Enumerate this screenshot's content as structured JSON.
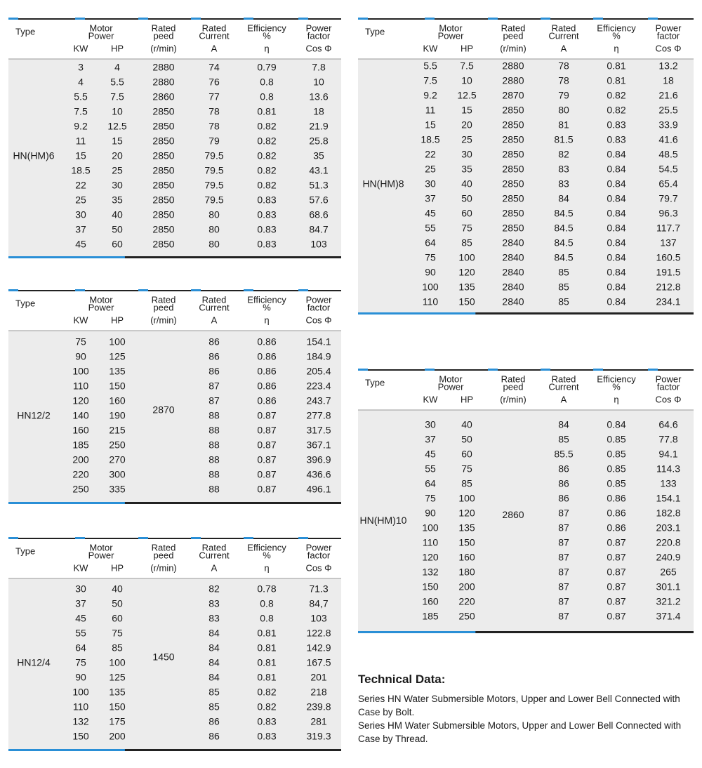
{
  "columns": {
    "type": "Type",
    "motor_power": [
      "Motor",
      "Power"
    ],
    "kw": "KW",
    "hp": "HP",
    "speed": [
      "Rated",
      "peed",
      "(r/min)"
    ],
    "current": [
      "Rated",
      "Current",
      "A"
    ],
    "efficiency": [
      "Efficiency",
      "%",
      "η"
    ],
    "power_factor": [
      "Power",
      "factor",
      "Cos Φ"
    ]
  },
  "tables": [
    {
      "type": "HN(HM)6",
      "rows": [
        [
          "3",
          "4",
          "2880",
          "74",
          "0.79",
          "7.8"
        ],
        [
          "4",
          "5.5",
          "2880",
          "76",
          "0.8",
          "10"
        ],
        [
          "5.5",
          "7.5",
          "2860",
          "77",
          "0.8",
          "13.6"
        ],
        [
          "7.5",
          "10",
          "2850",
          "78",
          "0.81",
          "18"
        ],
        [
          "9.2",
          "12.5",
          "2850",
          "78",
          "0.82",
          "21.9"
        ],
        [
          "11",
          "15",
          "2850",
          "79",
          "0.82",
          "25.8"
        ],
        [
          "15",
          "20",
          "2850",
          "79.5",
          "0.82",
          "35"
        ],
        [
          "18.5",
          "25",
          "2850",
          "79.5",
          "0.82",
          "43.1"
        ],
        [
          "22",
          "30",
          "2850",
          "79.5",
          "0.82",
          "51.3"
        ],
        [
          "25",
          "35",
          "2850",
          "79.5",
          "0.83",
          "57.6"
        ],
        [
          "30",
          "40",
          "2850",
          "80",
          "0.83",
          "68.6"
        ],
        [
          "37",
          "50",
          "2850",
          "80",
          "0.83",
          "84.7"
        ],
        [
          "45",
          "60",
          "2850",
          "80",
          "0.83",
          "103"
        ]
      ]
    },
    {
      "type": "HN(HM)8",
      "rows": [
        [
          "5.5",
          "7.5",
          "2880",
          "78",
          "0.81",
          "13.2"
        ],
        [
          "7.5",
          "10",
          "2880",
          "78",
          "0.81",
          "18"
        ],
        [
          "9.2",
          "12.5",
          "2870",
          "79",
          "0.82",
          "21.6"
        ],
        [
          "11",
          "15",
          "2850",
          "80",
          "0.82",
          "25.5"
        ],
        [
          "15",
          "20",
          "2850",
          "81",
          "0.83",
          "33.9"
        ],
        [
          "18.5",
          "25",
          "2850",
          "81.5",
          "0.83",
          "41.6"
        ],
        [
          "22",
          "30",
          "2850",
          "82",
          "0.84",
          "48.5"
        ],
        [
          "25",
          "35",
          "2850",
          "83",
          "0.84",
          "54.5"
        ],
        [
          "30",
          "40",
          "2850",
          "83",
          "0.84",
          "65.4"
        ],
        [
          "37",
          "50",
          "2850",
          "84",
          "0.84",
          "79.7"
        ],
        [
          "45",
          "60",
          "2850",
          "84.5",
          "0.84",
          "96.3"
        ],
        [
          "55",
          "75",
          "2850",
          "84.5",
          "0.84",
          "117.7"
        ],
        [
          "64",
          "85",
          "2840",
          "84.5",
          "0.84",
          "137"
        ],
        [
          "75",
          "100",
          "2840",
          "84.5",
          "0.84",
          "160.5"
        ],
        [
          "90",
          "120",
          "2840",
          "85",
          "0.84",
          "191.5"
        ],
        [
          "100",
          "135",
          "2840",
          "85",
          "0.84",
          "212.8"
        ],
        [
          "110",
          "150",
          "2840",
          "85",
          "0.84",
          "234.1"
        ]
      ]
    },
    {
      "type": "HN12/2",
      "speed": "2870",
      "rows": [
        [
          "75",
          "100",
          "86",
          "0.86",
          "154.1"
        ],
        [
          "90",
          "125",
          "86",
          "0.86",
          "184.9"
        ],
        [
          "100",
          "135",
          "86",
          "0.86",
          "205.4"
        ],
        [
          "110",
          "150",
          "87",
          "0.86",
          "223.4"
        ],
        [
          "120",
          "160",
          "87",
          "0.86",
          "243.7"
        ],
        [
          "140",
          "190",
          "88",
          "0.87",
          "277.8"
        ],
        [
          "160",
          "215",
          "88",
          "0.87",
          "317.5"
        ],
        [
          "185",
          "250",
          "88",
          "0.87",
          "367.1"
        ],
        [
          "200",
          "270",
          "88",
          "0.87",
          "396.9"
        ],
        [
          "220",
          "300",
          "88",
          "0.87",
          "436.6"
        ],
        [
          "250",
          "335",
          "88",
          "0.87",
          "496.1"
        ]
      ]
    },
    {
      "type": "HN(HM)10",
      "speed": "2860",
      "rows": [
        [
          "30",
          "40",
          "84",
          "0.84",
          "64.6"
        ],
        [
          "37",
          "50",
          "85",
          "0.85",
          "77.8"
        ],
        [
          "45",
          "60",
          "85.5",
          "0.85",
          "94.1"
        ],
        [
          "55",
          "75",
          "86",
          "0.85",
          "114.3"
        ],
        [
          "64",
          "85",
          "86",
          "0.85",
          "133"
        ],
        [
          "75",
          "100",
          "86",
          "0.86",
          "154.1"
        ],
        [
          "90",
          "120",
          "87",
          "0.86",
          "182.8"
        ],
        [
          "100",
          "135",
          "87",
          "0.86",
          "203.1"
        ],
        [
          "110",
          "150",
          "87",
          "0.87",
          "220.8"
        ],
        [
          "120",
          "160",
          "87",
          "0.87",
          "240.9"
        ],
        [
          "132",
          "180",
          "87",
          "0.87",
          "265"
        ],
        [
          "150",
          "200",
          "87",
          "0.87",
          "301.1"
        ],
        [
          "160",
          "220",
          "87",
          "0.87",
          "321.2"
        ],
        [
          "185",
          "250",
          "87",
          "0.87",
          "371.4"
        ]
      ]
    },
    {
      "type": "HN12/4",
      "speed": "1450",
      "rows": [
        [
          "30",
          "40",
          "82",
          "0.78",
          "71.3"
        ],
        [
          "37",
          "50",
          "83",
          "0.8",
          "84,7"
        ],
        [
          "45",
          "60",
          "83",
          "0.8",
          "103"
        ],
        [
          "55",
          "75",
          "84",
          "0.81",
          "122.8"
        ],
        [
          "64",
          "85",
          "84",
          "0.81",
          "142.9"
        ],
        [
          "75",
          "100",
          "84",
          "0.81",
          "167.5"
        ],
        [
          "90",
          "125",
          "84",
          "0.81",
          "201"
        ],
        [
          "100",
          "135",
          "85",
          "0.82",
          "218"
        ],
        [
          "110",
          "150",
          "85",
          "0.82",
          "239.8"
        ],
        [
          "132",
          "175",
          "86",
          "0.83",
          "281"
        ],
        [
          "150",
          "200",
          "86",
          "0.83",
          "319.3"
        ]
      ]
    }
  ],
  "technical_data": {
    "title": "Technical Data:",
    "paragraphs": [
      "Series HN Water Submersible Motors, Upper and Lower Bell Connected with Case by Bolt.",
      "Series HM Water Submersible Motors, Upper and Lower Bell Connected with Case by Thread."
    ]
  }
}
